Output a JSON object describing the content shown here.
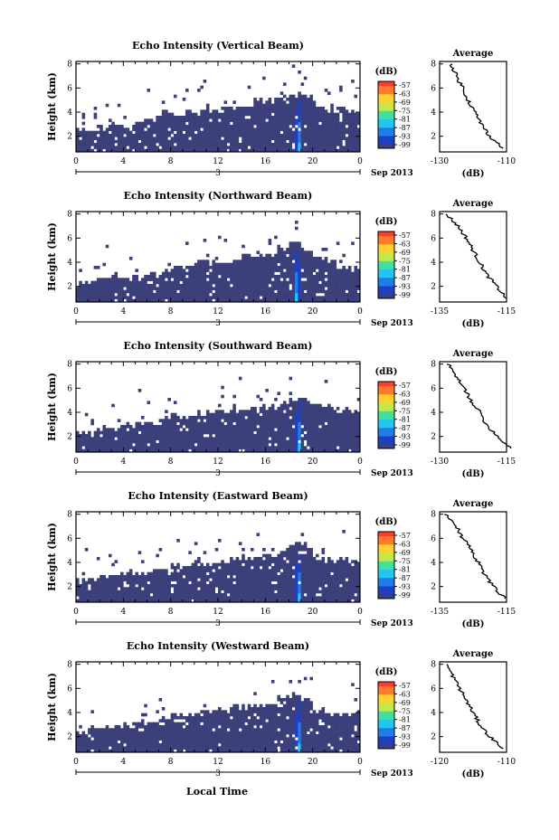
{
  "figure": {
    "x_axis_title": "Local Time",
    "date_label": "Sep 2013",
    "colorbar_unit": "(dB)",
    "colorbar_ticks": [
      "-57",
      "-63",
      "-69",
      "-75",
      "-81",
      "-87",
      "-93",
      "-99"
    ],
    "colors": {
      "background": "#3b3f7a",
      "colormap": [
        "#3b3f7a",
        "#1f3fbf",
        "#1e7de8",
        "#22c6ef",
        "#3fe0a0",
        "#c2e84a",
        "#ffcf30",
        "#ff7a2a",
        "#ff3b2a"
      ]
    },
    "average_title": "Average",
    "average_xlabel": "(dB)"
  },
  "chart_data": [
    {
      "type": "heatmap",
      "title": "Echo Intensity (Vertical Beam)",
      "ylabel": "Height (km)",
      "x_ticks": [
        "0",
        "4",
        "8",
        "12",
        "16",
        "20",
        "0"
      ],
      "x_sub_label": "3",
      "xlim": [
        0,
        24
      ],
      "ylim": [
        0.7,
        8.2
      ],
      "y_ticks": [
        "2",
        "4",
        "6",
        "8"
      ],
      "value_range_db": [
        -99,
        -57
      ],
      "valid_top_km_by_hour": [
        2.6,
        2.4,
        2.7,
        3.0,
        2.8,
        3.1,
        3.4,
        3.8,
        3.7,
        3.9,
        4.1,
        4.3,
        4.5,
        4.4,
        4.6,
        4.9,
        5.0,
        5.2,
        5.4,
        5.5,
        4.6,
        4.1,
        4.2,
        4.0
      ],
      "plume_time_h": 18.8,
      "average": {
        "type": "line",
        "xlim": [
          -130,
          -110
        ],
        "x_ticks": [
          "-130",
          "-110"
        ],
        "ylim": [
          0.7,
          8.2
        ],
        "y_ticks": [
          "2",
          "4",
          "6",
          "8"
        ],
        "height_km": [
          8,
          7,
          6,
          5,
          4,
          3,
          2,
          1
        ],
        "db": [
          -126.5,
          -125,
          -123,
          -121.5,
          -119.5,
          -117.5,
          -115,
          -111
        ]
      }
    },
    {
      "type": "heatmap",
      "title": "Echo Intensity (Northward Beam)",
      "ylabel": "Height (km)",
      "x_ticks": [
        "0",
        "4",
        "8",
        "12",
        "16",
        "20",
        "0"
      ],
      "x_sub_label": "3",
      "xlim": [
        0,
        24
      ],
      "ylim": [
        0.7,
        8.2
      ],
      "y_ticks": [
        "2",
        "4",
        "6",
        "8"
      ],
      "value_range_db": [
        -99,
        -57
      ],
      "valid_top_km_by_hour": [
        2.2,
        2.5,
        2.6,
        2.7,
        2.6,
        2.8,
        3.0,
        3.3,
        3.6,
        3.7,
        3.9,
        4.0,
        4.1,
        4.3,
        4.4,
        4.5,
        4.6,
        5.1,
        5.6,
        5.0,
        4.3,
        4.0,
        3.6,
        3.5
      ],
      "plume_time_h": 18.7,
      "average": {
        "type": "line",
        "xlim": [
          -135,
          -115
        ],
        "x_ticks": [
          "-135",
          "-115"
        ],
        "ylim": [
          0.7,
          8.2
        ],
        "y_ticks": [
          "2",
          "4",
          "6",
          "8"
        ],
        "height_km": [
          8,
          7,
          6,
          5,
          4,
          3,
          2,
          1
        ],
        "db": [
          -133,
          -129.5,
          -127,
          -125,
          -123,
          -121,
          -118,
          -115
        ]
      }
    },
    {
      "type": "heatmap",
      "title": "Echo Intensity (Southward Beam)",
      "ylabel": "Height (km)",
      "x_ticks": [
        "0",
        "4",
        "8",
        "12",
        "16",
        "20",
        "0"
      ],
      "x_sub_label": "3",
      "xlim": [
        0,
        24
      ],
      "ylim": [
        0.7,
        8.2
      ],
      "y_ticks": [
        "2",
        "4",
        "6",
        "8"
      ],
      "value_range_db": [
        -99,
        -57
      ],
      "valid_top_km_by_hour": [
        2.4,
        2.6,
        2.7,
        2.8,
        2.9,
        3.0,
        3.2,
        3.4,
        3.7,
        3.8,
        3.9,
        4.0,
        4.1,
        4.2,
        4.3,
        4.4,
        4.5,
        4.8,
        5.3,
        5.0,
        4.5,
        4.4,
        4.2,
        4.1
      ],
      "plume_time_h": 18.8,
      "average": {
        "type": "line",
        "xlim": [
          -130,
          -115
        ],
        "x_ticks": [
          "-130",
          "-115"
        ],
        "ylim": [
          0.7,
          8.2
        ],
        "y_ticks": [
          "2",
          "4",
          "6",
          "8"
        ],
        "height_km": [
          8,
          7,
          6,
          5,
          4,
          3,
          2,
          1
        ],
        "db": [
          -128,
          -126.5,
          -124.5,
          -123,
          -121,
          -119.5,
          -117,
          -114
        ]
      }
    },
    {
      "type": "heatmap",
      "title": "Echo Intensity (Eastward Beam)",
      "ylabel": "Height (km)",
      "x_ticks": [
        "0",
        "4",
        "8",
        "12",
        "16",
        "20",
        "0"
      ],
      "x_sub_label": "3",
      "xlim": [
        0,
        24
      ],
      "ylim": [
        0.7,
        8.2
      ],
      "y_ticks": [
        "2",
        "4",
        "6",
        "8"
      ],
      "value_range_db": [
        -99,
        -57
      ],
      "valid_top_km_by_hour": [
        2.5,
        2.6,
        2.8,
        2.9,
        3.0,
        3.1,
        3.3,
        3.5,
        3.7,
        3.8,
        3.9,
        4.0,
        4.1,
        4.2,
        4.4,
        4.5,
        4.6,
        5.0,
        5.6,
        5.3,
        4.4,
        4.2,
        4.1,
        4.0
      ],
      "plume_time_h": 18.8,
      "average": {
        "type": "line",
        "xlim": [
          -135,
          -115
        ],
        "x_ticks": [
          "-135",
          "-115"
        ],
        "ylim": [
          0.7,
          8.2
        ],
        "y_ticks": [
          "2",
          "4",
          "6",
          "8"
        ],
        "height_km": [
          8,
          7,
          6,
          5,
          4,
          3,
          2,
          1
        ],
        "db": [
          -133,
          -130,
          -128,
          -125.5,
          -123.5,
          -121.5,
          -119,
          -115.5
        ]
      }
    },
    {
      "type": "heatmap",
      "title": "Echo Intensity (Westward Beam)",
      "ylabel": "Height (km)",
      "x_ticks": [
        "0",
        "4",
        "8",
        "12",
        "16",
        "20",
        "0"
      ],
      "x_sub_label": "3",
      "xlim": [
        0,
        24
      ],
      "ylim": [
        0.7,
        8.2
      ],
      "y_ticks": [
        "2",
        "4",
        "6",
        "8"
      ],
      "value_range_db": [
        -99,
        -57
      ],
      "valid_top_km_by_hour": [
        2.4,
        2.6,
        2.7,
        2.9,
        3.0,
        3.2,
        3.4,
        3.6,
        3.8,
        3.9,
        4.0,
        4.1,
        4.3,
        4.4,
        4.5,
        4.6,
        4.8,
        5.2,
        5.6,
        5.1,
        4.2,
        4.0,
        3.9,
        3.8
      ],
      "plume_time_h": 18.8,
      "average": {
        "type": "line",
        "xlim": [
          -120,
          -110
        ],
        "x_ticks": [
          "-120",
          "-110"
        ],
        "ylim": [
          0.7,
          8.2
        ],
        "y_ticks": [
          "2",
          "4",
          "6",
          "8"
        ],
        "height_km": [
          8,
          7,
          6,
          5,
          4,
          3,
          2,
          1
        ],
        "db": [
          -119,
          -118,
          -117,
          -116,
          -115,
          -114,
          -112.5,
          -110.5
        ]
      }
    }
  ]
}
